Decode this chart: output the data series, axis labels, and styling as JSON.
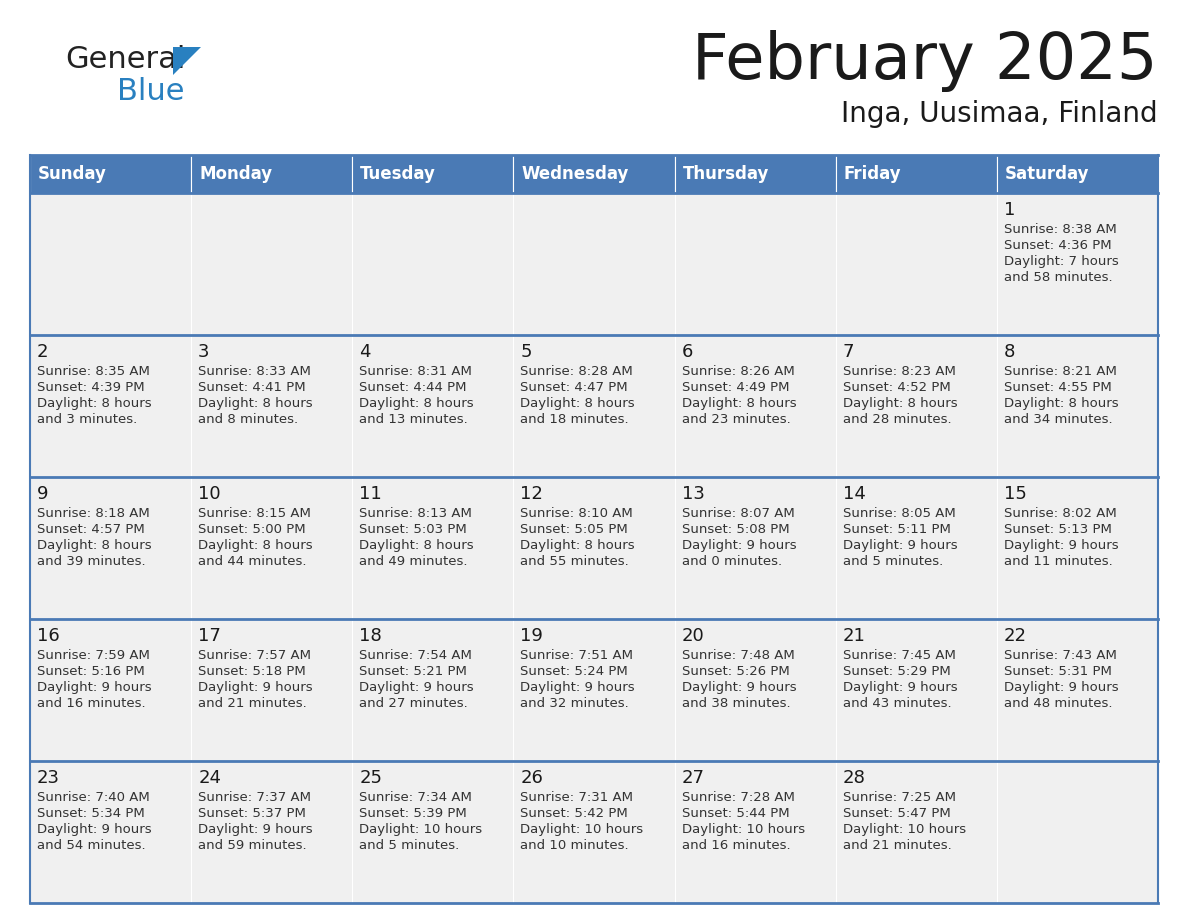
{
  "title": "February 2025",
  "subtitle": "Inga, Uusimaa, Finland",
  "header_bg": "#4a7ab5",
  "header_text": "#ffffff",
  "cell_bg": "#f0f0f0",
  "border_color": "#4a7ab5",
  "text_color": "#333333",
  "day_headers": [
    "Sunday",
    "Monday",
    "Tuesday",
    "Wednesday",
    "Thursday",
    "Friday",
    "Saturday"
  ],
  "calendar_data": [
    [
      null,
      null,
      null,
      null,
      null,
      null,
      {
        "day": "1",
        "sunrise": "8:38 AM",
        "sunset": "4:36 PM",
        "daylight1": "Daylight: 7 hours",
        "daylight2": "and 58 minutes."
      }
    ],
    [
      {
        "day": "2",
        "sunrise": "8:35 AM",
        "sunset": "4:39 PM",
        "daylight1": "Daylight: 8 hours",
        "daylight2": "and 3 minutes."
      },
      {
        "day": "3",
        "sunrise": "8:33 AM",
        "sunset": "4:41 PM",
        "daylight1": "Daylight: 8 hours",
        "daylight2": "and 8 minutes."
      },
      {
        "day": "4",
        "sunrise": "8:31 AM",
        "sunset": "4:44 PM",
        "daylight1": "Daylight: 8 hours",
        "daylight2": "and 13 minutes."
      },
      {
        "day": "5",
        "sunrise": "8:28 AM",
        "sunset": "4:47 PM",
        "daylight1": "Daylight: 8 hours",
        "daylight2": "and 18 minutes."
      },
      {
        "day": "6",
        "sunrise": "8:26 AM",
        "sunset": "4:49 PM",
        "daylight1": "Daylight: 8 hours",
        "daylight2": "and 23 minutes."
      },
      {
        "day": "7",
        "sunrise": "8:23 AM",
        "sunset": "4:52 PM",
        "daylight1": "Daylight: 8 hours",
        "daylight2": "and 28 minutes."
      },
      {
        "day": "8",
        "sunrise": "8:21 AM",
        "sunset": "4:55 PM",
        "daylight1": "Daylight: 8 hours",
        "daylight2": "and 34 minutes."
      }
    ],
    [
      {
        "day": "9",
        "sunrise": "8:18 AM",
        "sunset": "4:57 PM",
        "daylight1": "Daylight: 8 hours",
        "daylight2": "and 39 minutes."
      },
      {
        "day": "10",
        "sunrise": "8:15 AM",
        "sunset": "5:00 PM",
        "daylight1": "Daylight: 8 hours",
        "daylight2": "and 44 minutes."
      },
      {
        "day": "11",
        "sunrise": "8:13 AM",
        "sunset": "5:03 PM",
        "daylight1": "Daylight: 8 hours",
        "daylight2": "and 49 minutes."
      },
      {
        "day": "12",
        "sunrise": "8:10 AM",
        "sunset": "5:05 PM",
        "daylight1": "Daylight: 8 hours",
        "daylight2": "and 55 minutes."
      },
      {
        "day": "13",
        "sunrise": "8:07 AM",
        "sunset": "5:08 PM",
        "daylight1": "Daylight: 9 hours",
        "daylight2": "and 0 minutes."
      },
      {
        "day": "14",
        "sunrise": "8:05 AM",
        "sunset": "5:11 PM",
        "daylight1": "Daylight: 9 hours",
        "daylight2": "and 5 minutes."
      },
      {
        "day": "15",
        "sunrise": "8:02 AM",
        "sunset": "5:13 PM",
        "daylight1": "Daylight: 9 hours",
        "daylight2": "and 11 minutes."
      }
    ],
    [
      {
        "day": "16",
        "sunrise": "7:59 AM",
        "sunset": "5:16 PM",
        "daylight1": "Daylight: 9 hours",
        "daylight2": "and 16 minutes."
      },
      {
        "day": "17",
        "sunrise": "7:57 AM",
        "sunset": "5:18 PM",
        "daylight1": "Daylight: 9 hours",
        "daylight2": "and 21 minutes."
      },
      {
        "day": "18",
        "sunrise": "7:54 AM",
        "sunset": "5:21 PM",
        "daylight1": "Daylight: 9 hours",
        "daylight2": "and 27 minutes."
      },
      {
        "day": "19",
        "sunrise": "7:51 AM",
        "sunset": "5:24 PM",
        "daylight1": "Daylight: 9 hours",
        "daylight2": "and 32 minutes."
      },
      {
        "day": "20",
        "sunrise": "7:48 AM",
        "sunset": "5:26 PM",
        "daylight1": "Daylight: 9 hours",
        "daylight2": "and 38 minutes."
      },
      {
        "day": "21",
        "sunrise": "7:45 AM",
        "sunset": "5:29 PM",
        "daylight1": "Daylight: 9 hours",
        "daylight2": "and 43 minutes."
      },
      {
        "day": "22",
        "sunrise": "7:43 AM",
        "sunset": "5:31 PM",
        "daylight1": "Daylight: 9 hours",
        "daylight2": "and 48 minutes."
      }
    ],
    [
      {
        "day": "23",
        "sunrise": "7:40 AM",
        "sunset": "5:34 PM",
        "daylight1": "Daylight: 9 hours",
        "daylight2": "and 54 minutes."
      },
      {
        "day": "24",
        "sunrise": "7:37 AM",
        "sunset": "5:37 PM",
        "daylight1": "Daylight: 9 hours",
        "daylight2": "and 59 minutes."
      },
      {
        "day": "25",
        "sunrise": "7:34 AM",
        "sunset": "5:39 PM",
        "daylight1": "Daylight: 10 hours",
        "daylight2": "and 5 minutes."
      },
      {
        "day": "26",
        "sunrise": "7:31 AM",
        "sunset": "5:42 PM",
        "daylight1": "Daylight: 10 hours",
        "daylight2": "and 10 minutes."
      },
      {
        "day": "27",
        "sunrise": "7:28 AM",
        "sunset": "5:44 PM",
        "daylight1": "Daylight: 10 hours",
        "daylight2": "and 16 minutes."
      },
      {
        "day": "28",
        "sunrise": "7:25 AM",
        "sunset": "5:47 PM",
        "daylight1": "Daylight: 10 hours",
        "daylight2": "and 21 minutes."
      },
      null
    ]
  ],
  "logo_general_color": "#222222",
  "logo_blue_color": "#2980c0",
  "logo_triangle_color": "#2980c0"
}
